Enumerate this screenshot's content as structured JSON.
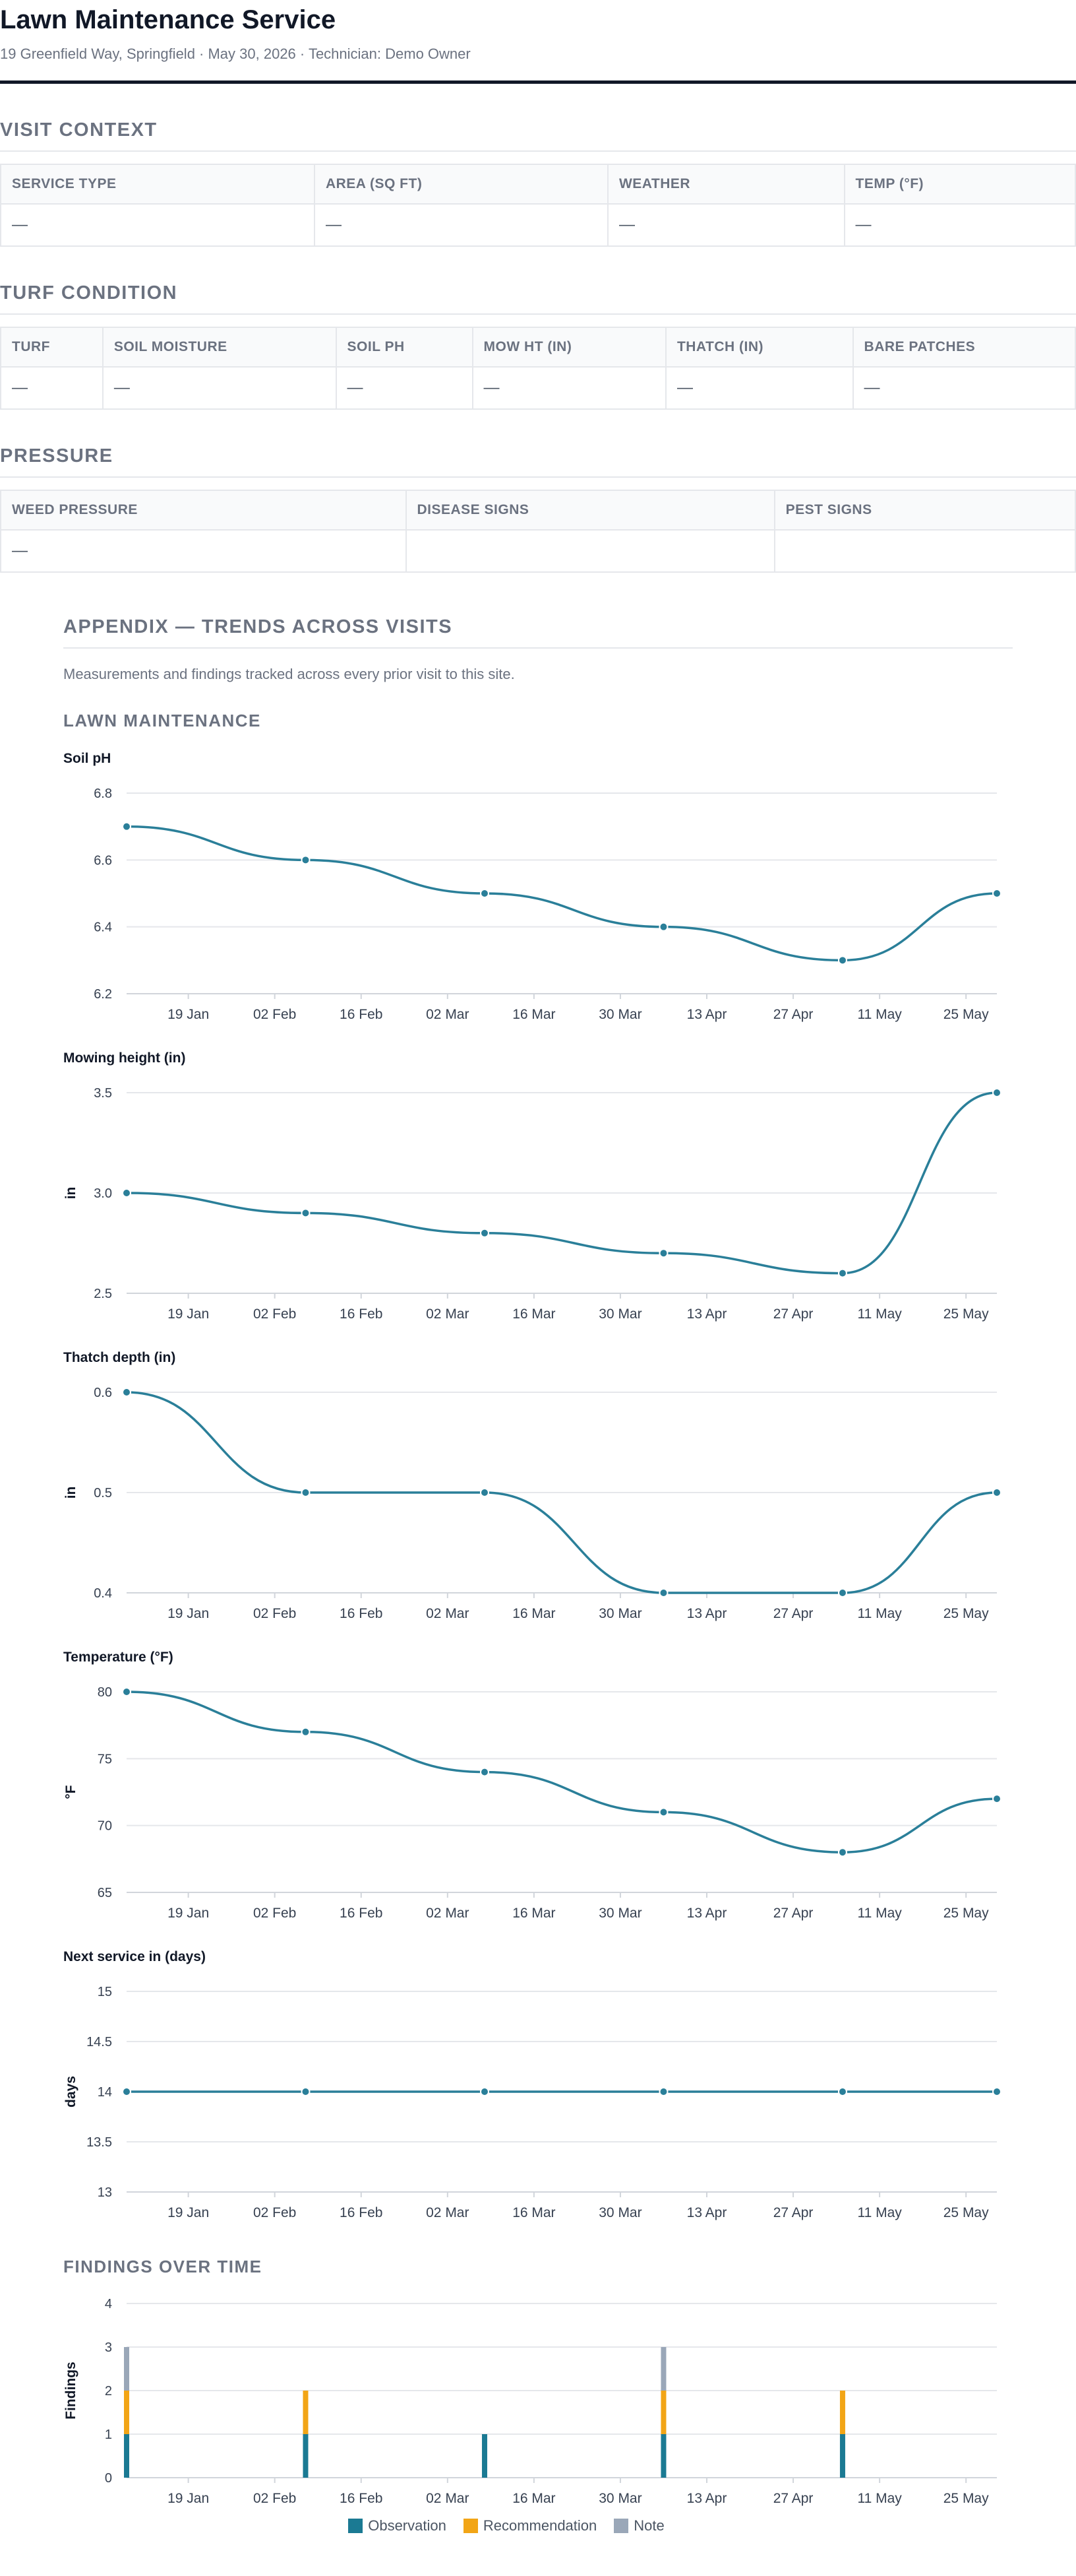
{
  "header": {
    "title": "Lawn Maintenance Service",
    "subtitle": "19 Greenfield Way, Springfield · May 30, 2026 · Technician: Demo Owner"
  },
  "sections": {
    "visit": {
      "title": "VISIT CONTEXT",
      "headers": [
        "SERVICE TYPE",
        "AREA (SQ FT)",
        "WEATHER",
        "TEMP (°F)"
      ],
      "values": [
        "—",
        "—",
        "—",
        "—"
      ]
    },
    "turf": {
      "title": "TURF CONDITION",
      "headers": [
        "TURF",
        "SOIL MOISTURE",
        "SOIL PH",
        "MOW HT (IN)",
        "THATCH (IN)",
        "BARE PATCHES"
      ],
      "values": [
        "—",
        "—",
        "—",
        "—",
        "—",
        "—"
      ]
    },
    "pressure": {
      "title": "PRESSURE",
      "headers": [
        "WEED PRESSURE",
        "DISEASE SIGNS",
        "PEST SIGNS"
      ],
      "values": [
        "—",
        "",
        ""
      ]
    }
  },
  "appendix": {
    "title": "APPENDIX — TRENDS ACROSS VISITS",
    "description": "Measurements and findings tracked across every prior visit to this site.",
    "lawn_title": "LAWN MAINTENANCE",
    "findings_title": "FINDINGS OVER TIME"
  },
  "colors": {
    "line": "#2a7f99",
    "observation": "#1b7a93",
    "recommendation": "#f2a516",
    "note": "#9aa7b8",
    "grid": "#e5e7eb"
  },
  "chart_data": [
    {
      "type": "line",
      "title": "Soil pH",
      "ylabel": "",
      "x": [
        "2026-01-09",
        "2026-02-07",
        "2026-03-08",
        "2026-04-06",
        "2026-05-05",
        "2026-05-30"
      ],
      "series": [
        {
          "values": [
            6.7,
            6.6,
            6.5,
            6.4,
            6.3,
            6.5
          ]
        }
      ],
      "ylim": [
        6.2,
        6.8
      ],
      "yticks": [
        "6.2",
        "6.4",
        "6.6",
        "6.8"
      ],
      "xticks": [
        "19 Jan",
        "02 Feb",
        "16 Feb",
        "02 Mar",
        "16 Mar",
        "30 Mar",
        "13 Apr",
        "27 Apr",
        "11 May",
        "25 May"
      ]
    },
    {
      "type": "line",
      "title": "Mowing height (in)",
      "ylabel": "in",
      "x": [
        "2026-01-09",
        "2026-02-07",
        "2026-03-08",
        "2026-04-06",
        "2026-05-05",
        "2026-05-30"
      ],
      "series": [
        {
          "values": [
            3.0,
            2.9,
            2.8,
            2.7,
            2.6,
            3.5
          ]
        }
      ],
      "ylim": [
        2.5,
        3.5
      ],
      "yticks": [
        "2.5",
        "3.0",
        "3.5"
      ],
      "xticks": [
        "19 Jan",
        "02 Feb",
        "16 Feb",
        "02 Mar",
        "16 Mar",
        "30 Mar",
        "13 Apr",
        "27 Apr",
        "11 May",
        "25 May"
      ]
    },
    {
      "type": "line",
      "title": "Thatch depth (in)",
      "ylabel": "in",
      "x": [
        "2026-01-09",
        "2026-02-07",
        "2026-03-08",
        "2026-04-06",
        "2026-05-05",
        "2026-05-30"
      ],
      "series": [
        {
          "values": [
            0.6,
            0.5,
            0.5,
            0.4,
            0.4,
            0.5
          ]
        }
      ],
      "ylim": [
        0.4,
        0.6
      ],
      "yticks": [
        "0.4",
        "0.5",
        "0.6"
      ],
      "xticks": [
        "19 Jan",
        "02 Feb",
        "16 Feb",
        "02 Mar",
        "16 Mar",
        "30 Mar",
        "13 Apr",
        "27 Apr",
        "11 May",
        "25 May"
      ]
    },
    {
      "type": "line",
      "title": "Temperature (°F)",
      "ylabel": "°F",
      "x": [
        "2026-01-09",
        "2026-02-07",
        "2026-03-08",
        "2026-04-06",
        "2026-05-05",
        "2026-05-30"
      ],
      "series": [
        {
          "values": [
            80,
            77,
            74,
            71,
            68,
            72
          ]
        }
      ],
      "ylim": [
        65,
        80
      ],
      "yticks": [
        "65",
        "70",
        "75",
        "80"
      ],
      "xticks": [
        "19 Jan",
        "02 Feb",
        "16 Feb",
        "02 Mar",
        "16 Mar",
        "30 Mar",
        "13 Apr",
        "27 Apr",
        "11 May",
        "25 May"
      ]
    },
    {
      "type": "line",
      "title": "Next service in (days)",
      "ylabel": "days",
      "x": [
        "2026-01-09",
        "2026-02-07",
        "2026-03-08",
        "2026-04-06",
        "2026-05-05",
        "2026-05-30"
      ],
      "series": [
        {
          "values": [
            14,
            14,
            14,
            14,
            14,
            14
          ]
        }
      ],
      "ylim": [
        13,
        15
      ],
      "yticks": [
        "13",
        "13.5",
        "14",
        "14.5",
        "15"
      ],
      "xticks": [
        "19 Jan",
        "02 Feb",
        "16 Feb",
        "02 Mar",
        "16 Mar",
        "30 Mar",
        "13 Apr",
        "27 Apr",
        "11 May",
        "25 May"
      ]
    },
    {
      "type": "bar",
      "stacked": true,
      "title": "",
      "ylabel": "Findings",
      "x": [
        "2026-01-09",
        "2026-02-07",
        "2026-03-08",
        "2026-04-06",
        "2026-05-05"
      ],
      "series": [
        {
          "name": "Observation",
          "values": [
            1,
            1,
            1,
            1,
            1
          ]
        },
        {
          "name": "Recommendation",
          "values": [
            1,
            1,
            0,
            1,
            1
          ]
        },
        {
          "name": "Note",
          "values": [
            1,
            0,
            0,
            1,
            0
          ]
        }
      ],
      "ylim": [
        0,
        4
      ],
      "yticks": [
        "0",
        "1",
        "2",
        "3",
        "4"
      ],
      "xticks": [
        "19 Jan",
        "02 Feb",
        "16 Feb",
        "02 Mar",
        "16 Mar",
        "30 Mar",
        "13 Apr",
        "27 Apr",
        "11 May",
        "25 May"
      ],
      "legend": "bottom"
    }
  ]
}
